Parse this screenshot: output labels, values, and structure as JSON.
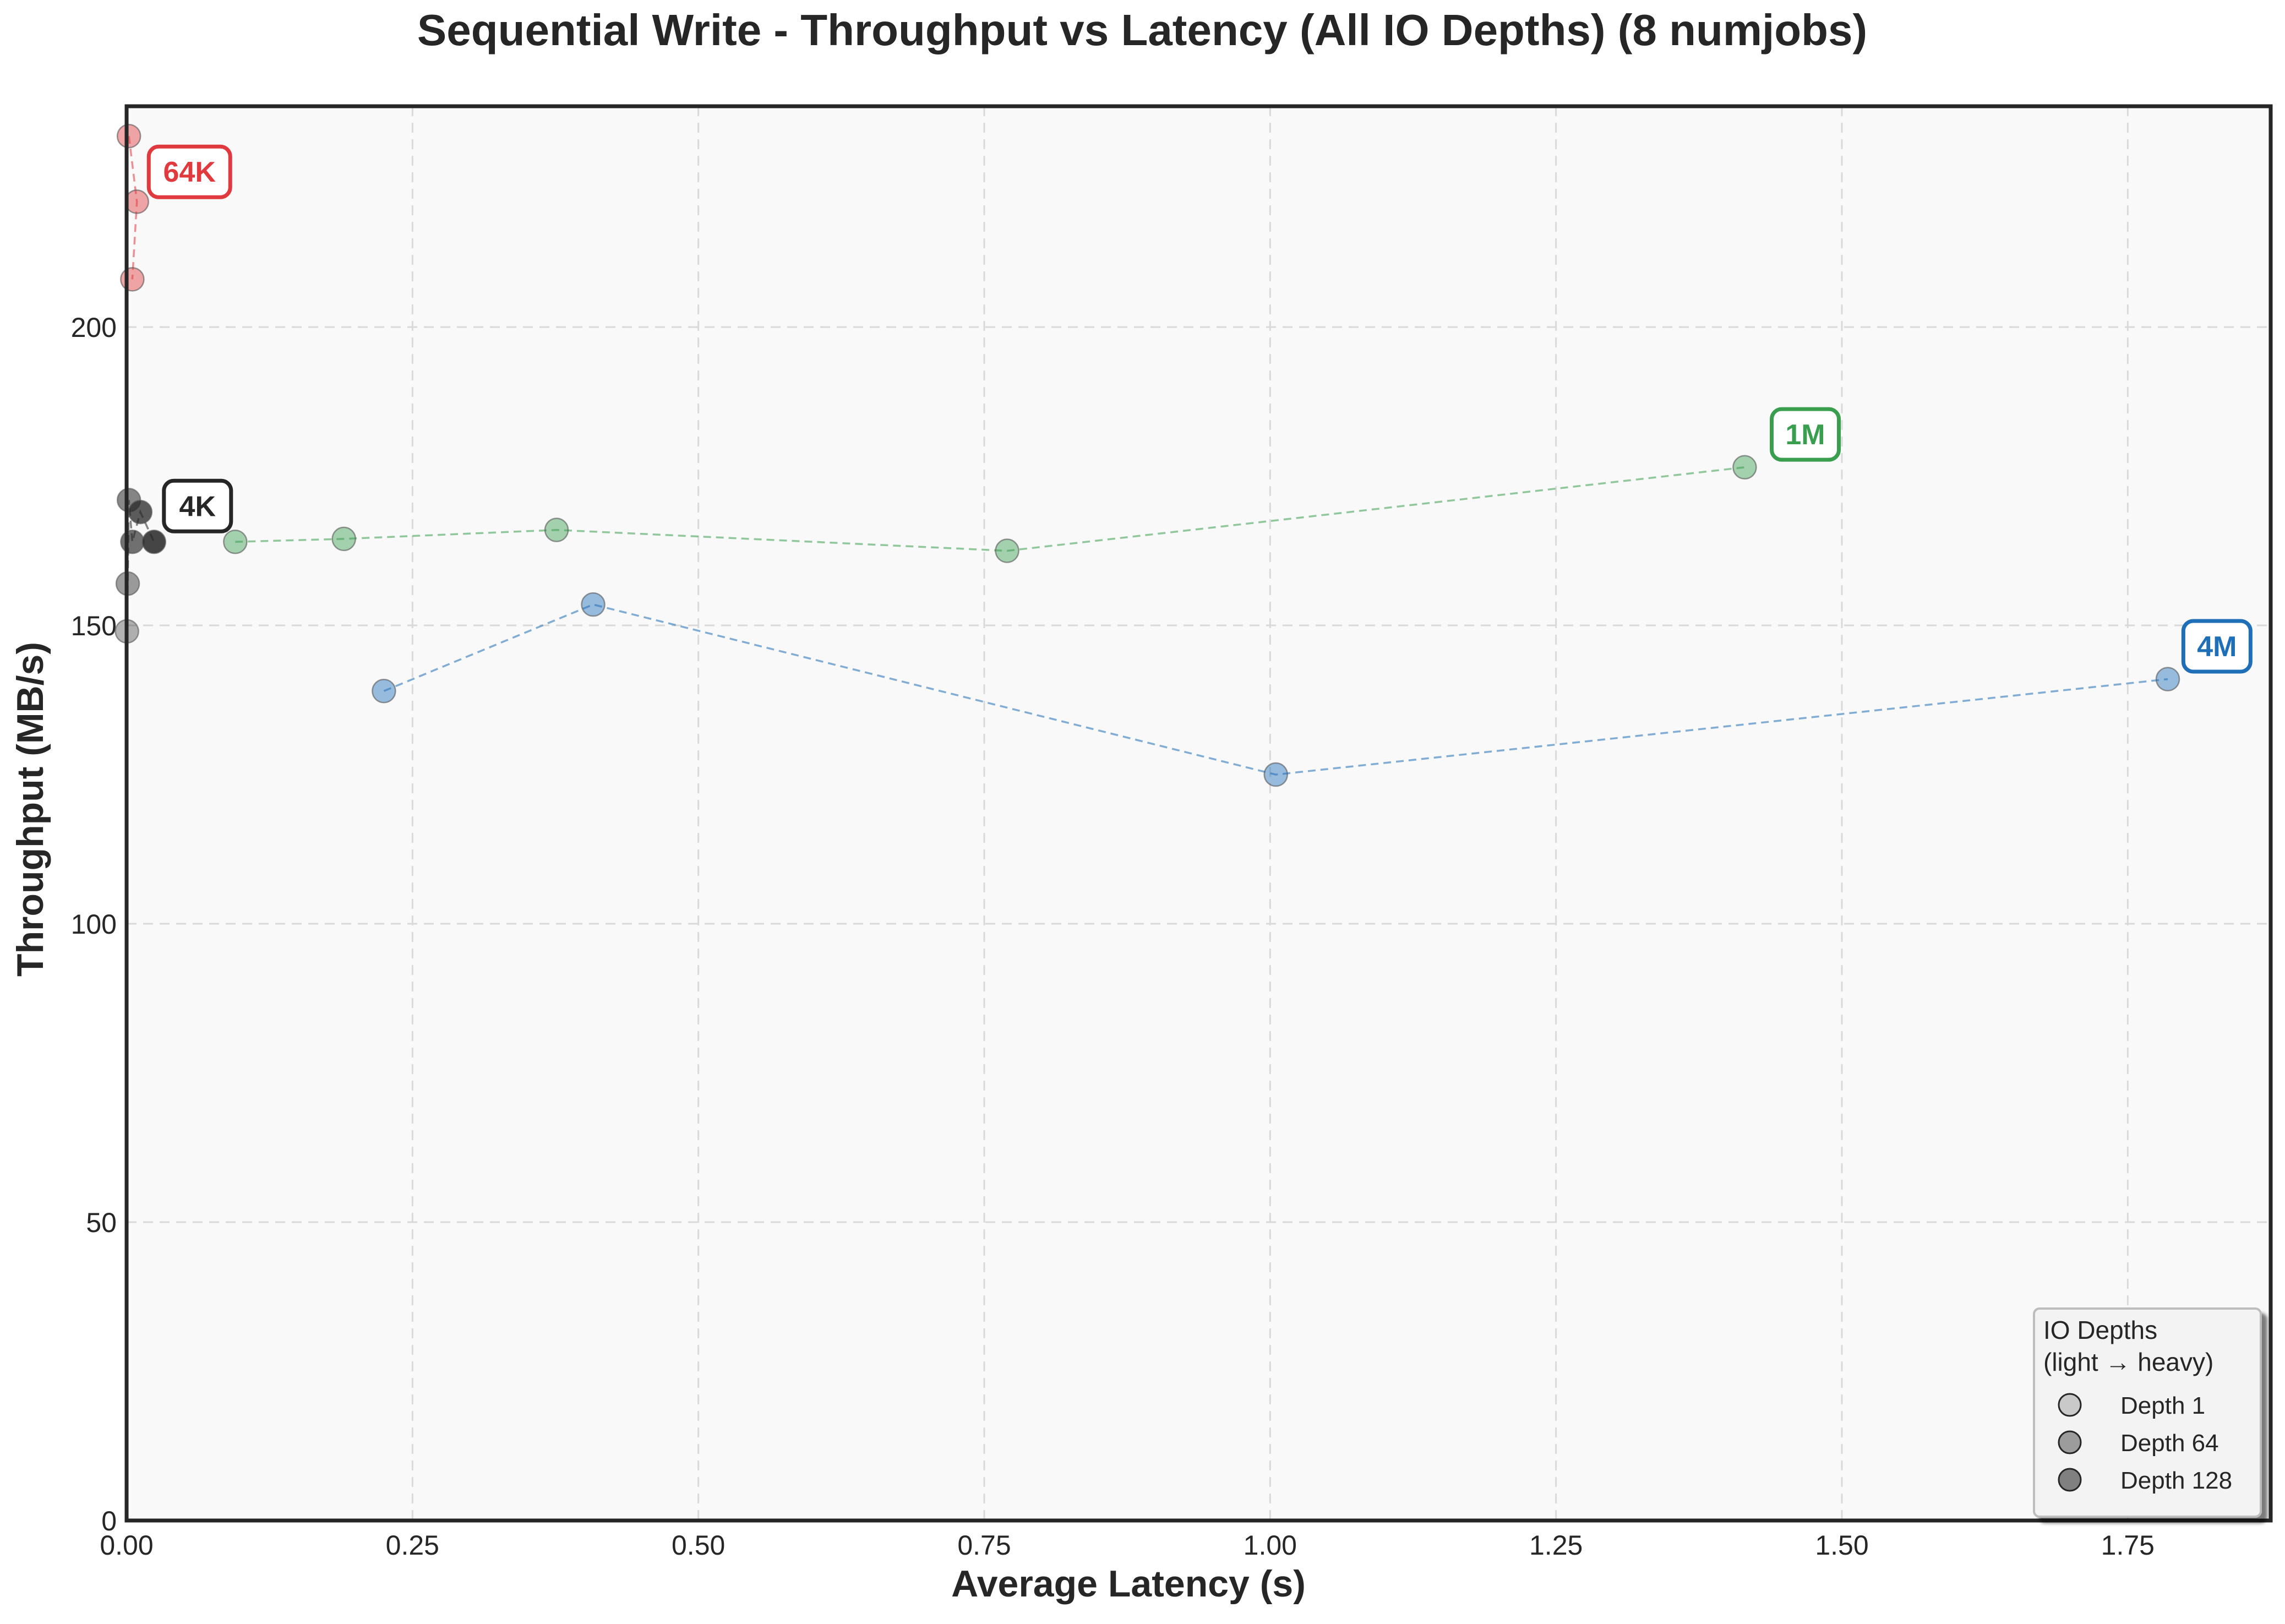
{
  "chart_data": {
    "type": "scatter",
    "title": "Sequential Write - Throughput vs Latency (All IO Depths) (8 numjobs)",
    "xlabel": "Average Latency (s)",
    "ylabel": "Throughput (MB/s)",
    "xlim": [
      0,
      1.875
    ],
    "ylim": [
      0,
      237
    ],
    "xticks": [
      0,
      0.25,
      0.5,
      0.75,
      1.0,
      1.25,
      1.5,
      1.75
    ],
    "xtick_labels": [
      "0.00",
      "0.25",
      "0.50",
      "0.75",
      "1.00",
      "1.25",
      "1.50",
      "1.75"
    ],
    "yticks": [
      0,
      50,
      100,
      150,
      200
    ],
    "ytick_labels": [
      "0",
      "50",
      "100",
      "150",
      "200"
    ],
    "grid": true,
    "series": [
      {
        "name": "64K",
        "color": "#e03a3e",
        "points": [
          {
            "x": 0.002,
            "y": 232
          },
          {
            "x": 0.009,
            "y": 221
          },
          {
            "x": 0.005,
            "y": 208
          }
        ],
        "label_at": {
          "x": 0.055,
          "y": 226
        }
      },
      {
        "name": "4K",
        "color": "#262626",
        "points": [
          {
            "x": 0.0003,
            "y": 149
          },
          {
            "x": 0.001,
            "y": 157
          },
          {
            "x": 0.002,
            "y": 171
          },
          {
            "x": 0.005,
            "y": 164
          },
          {
            "x": 0.012,
            "y": 169
          },
          {
            "x": 0.024,
            "y": 164
          }
        ],
        "label_at": {
          "x": 0.062,
          "y": 170
        }
      },
      {
        "name": "1M",
        "color": "#3a9e4f",
        "points": [
          {
            "x": 0.095,
            "y": 164
          },
          {
            "x": 0.19,
            "y": 164.5
          },
          {
            "x": 0.376,
            "y": 166
          },
          {
            "x": 0.77,
            "y": 162.5
          },
          {
            "x": 1.415,
            "y": 176.5
          }
        ],
        "label_at": {
          "x": 1.468,
          "y": 182
        }
      },
      {
        "name": "4M",
        "color": "#1f6fb8",
        "points": [
          {
            "x": 0.225,
            "y": 139
          },
          {
            "x": 0.408,
            "y": 153.5
          },
          {
            "x": 1.005,
            "y": 125
          },
          {
            "x": 1.785,
            "y": 141
          }
        ],
        "label_at": {
          "x": 1.828,
          "y": 146.5
        }
      }
    ],
    "legend": {
      "position": "bottom-right",
      "title_line1": "IO Depths",
      "title_line2": "(light → heavy)",
      "entries": [
        {
          "label": "Depth 1",
          "shade": "light"
        },
        {
          "label": "Depth 64",
          "shade": "medium"
        },
        {
          "label": "Depth 128",
          "shade": "dark"
        }
      ]
    }
  }
}
